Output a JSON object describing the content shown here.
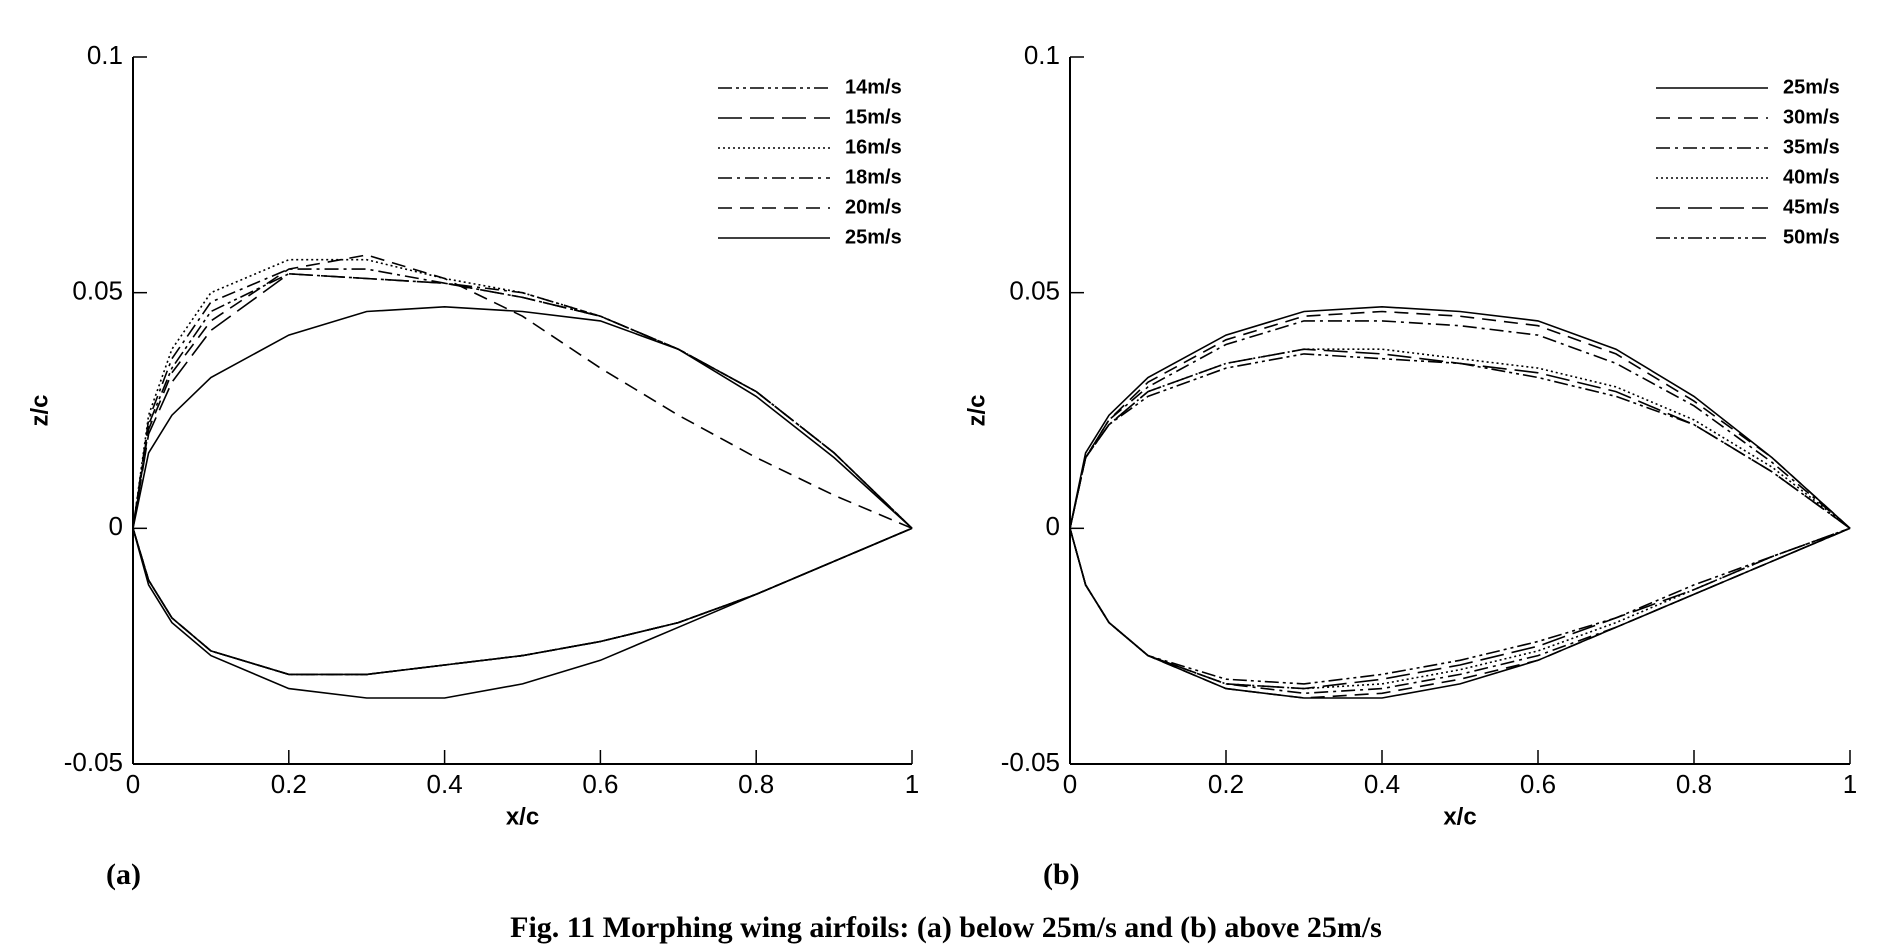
{
  "caption": "Fig. 11    Morphing wing airfoils: (a) below 25m/s and (b) above 25m/s",
  "chart_data": [
    {
      "type": "line",
      "panel_label": "(a)",
      "x_label": "x/c",
      "y_label": "z/c",
      "xlim": [
        0,
        1
      ],
      "xticks": [
        0,
        0.2,
        0.4,
        0.6,
        0.8,
        1
      ],
      "ylim": [
        -0.05,
        0.1
      ],
      "yticks": [
        -0.05,
        0,
        0.05,
        0.1
      ],
      "legend": "upper right",
      "color": "#000000",
      "x": [
        1,
        0.9,
        0.8,
        0.7,
        0.6,
        0.5,
        0.4,
        0.3,
        0.2,
        0.1,
        0.05,
        0.02,
        0,
        0.02,
        0.05,
        0.1,
        0.2,
        0.3,
        0.4,
        0.5,
        0.6,
        0.7,
        0.8,
        0.9,
        1
      ],
      "series": [
        {
          "name": "14m/s",
          "dash": "dashdotdot",
          "values": [
            0,
            0.016,
            0.029,
            0.038,
            0.045,
            0.049,
            0.052,
            0.053,
            0.054,
            0.046,
            0.034,
            0.022,
            0,
            -0.011,
            -0.019,
            -0.026,
            -0.031,
            -0.031,
            -0.029,
            -0.027,
            -0.024,
            -0.02,
            -0.014,
            -0.007,
            0
          ]
        },
        {
          "name": "15m/s",
          "dash": "longdash",
          "values": [
            0,
            0.016,
            0.029,
            0.038,
            0.045,
            0.049,
            0.052,
            0.053,
            0.054,
            0.042,
            0.031,
            0.02,
            0,
            -0.011,
            -0.019,
            -0.026,
            -0.031,
            -0.031,
            -0.029,
            -0.027,
            -0.024,
            -0.02,
            -0.014,
            -0.007,
            0
          ]
        },
        {
          "name": "16m/s",
          "dash": "dot",
          "values": [
            0,
            0.016,
            0.029,
            0.038,
            0.045,
            0.05,
            0.053,
            0.057,
            0.057,
            0.05,
            0.038,
            0.024,
            0,
            -0.011,
            -0.019,
            -0.026,
            -0.031,
            -0.031,
            -0.029,
            -0.027,
            -0.024,
            -0.02,
            -0.014,
            -0.007,
            0
          ]
        },
        {
          "name": "18m/s",
          "dash": "dashdot",
          "values": [
            0,
            0.016,
            0.029,
            0.038,
            0.045,
            0.05,
            0.052,
            0.055,
            0.055,
            0.048,
            0.036,
            0.023,
            0,
            -0.011,
            -0.019,
            -0.026,
            -0.031,
            -0.031,
            -0.029,
            -0.027,
            -0.024,
            -0.02,
            -0.014,
            -0.007,
            0
          ]
        },
        {
          "name": "20m/s",
          "dash": "dash",
          "values": [
            0,
            0.007,
            0.015,
            0.024,
            0.034,
            0.045,
            0.053,
            0.058,
            0.055,
            0.044,
            0.033,
            0.021,
            0,
            -0.011,
            -0.019,
            -0.026,
            -0.031,
            -0.031,
            -0.029,
            -0.027,
            -0.024,
            -0.02,
            -0.014,
            -0.007,
            0
          ]
        },
        {
          "name": "25m/s",
          "dash": "solid",
          "values": [
            0,
            0.015,
            0.028,
            0.038,
            0.044,
            0.046,
            0.047,
            0.046,
            0.041,
            0.032,
            0.024,
            0.016,
            0,
            -0.012,
            -0.02,
            -0.027,
            -0.034,
            -0.036,
            -0.036,
            -0.033,
            -0.028,
            -0.021,
            -0.014,
            -0.007,
            0
          ]
        }
      ]
    },
    {
      "type": "line",
      "panel_label": "(b)",
      "x_label": "x/c",
      "y_label": "z/c",
      "xlim": [
        0,
        1
      ],
      "xticks": [
        0,
        0.2,
        0.4,
        0.6,
        0.8,
        1
      ],
      "ylim": [
        -0.05,
        0.1
      ],
      "yticks": [
        -0.05,
        0,
        0.05,
        0.1
      ],
      "legend": "upper right",
      "color": "#000000",
      "x": [
        1,
        0.9,
        0.8,
        0.7,
        0.6,
        0.5,
        0.4,
        0.3,
        0.2,
        0.1,
        0.05,
        0.02,
        0,
        0.02,
        0.05,
        0.1,
        0.2,
        0.3,
        0.4,
        0.5,
        0.6,
        0.7,
        0.8,
        0.9,
        1
      ],
      "series": [
        {
          "name": "25m/s",
          "dash": "solid",
          "values": [
            0,
            0.015,
            0.028,
            0.038,
            0.044,
            0.046,
            0.047,
            0.046,
            0.041,
            0.032,
            0.024,
            0.016,
            0,
            -0.012,
            -0.02,
            -0.027,
            -0.034,
            -0.036,
            -0.036,
            -0.033,
            -0.028,
            -0.021,
            -0.014,
            -0.007,
            0
          ]
        },
        {
          "name": "30m/s",
          "dash": "dash",
          "values": [
            0,
            0.015,
            0.027,
            0.037,
            0.043,
            0.045,
            0.046,
            0.045,
            0.04,
            0.031,
            0.023,
            0.015,
            0,
            -0.012,
            -0.02,
            -0.027,
            -0.034,
            -0.036,
            -0.035,
            -0.032,
            -0.028,
            -0.021,
            -0.014,
            -0.007,
            0
          ]
        },
        {
          "name": "35m/s",
          "dash": "dashdot",
          "values": [
            0,
            0.014,
            0.026,
            0.035,
            0.041,
            0.043,
            0.044,
            0.044,
            0.039,
            0.03,
            0.023,
            0.015,
            0,
            -0.012,
            -0.02,
            -0.027,
            -0.033,
            -0.035,
            -0.034,
            -0.031,
            -0.027,
            -0.021,
            -0.014,
            -0.007,
            0
          ]
        },
        {
          "name": "40m/s",
          "dash": "dot",
          "values": [
            0,
            0.013,
            0.023,
            0.03,
            0.034,
            0.036,
            0.038,
            0.038,
            0.035,
            0.029,
            0.022,
            0.015,
            0,
            -0.012,
            -0.02,
            -0.027,
            -0.033,
            -0.034,
            -0.033,
            -0.03,
            -0.026,
            -0.02,
            -0.013,
            -0.006,
            0
          ]
        },
        {
          "name": "45m/s",
          "dash": "longdash",
          "values": [
            0,
            0.012,
            0.022,
            0.029,
            0.033,
            0.035,
            0.037,
            0.038,
            0.035,
            0.029,
            0.022,
            0.015,
            0,
            -0.012,
            -0.02,
            -0.027,
            -0.033,
            -0.034,
            -0.032,
            -0.029,
            -0.025,
            -0.019,
            -0.013,
            -0.006,
            0
          ]
        },
        {
          "name": "50m/s",
          "dash": "dashdotdot",
          "values": [
            0,
            0.012,
            0.022,
            0.028,
            0.032,
            0.035,
            0.036,
            0.037,
            0.034,
            0.028,
            0.022,
            0.015,
            0,
            -0.012,
            -0.02,
            -0.027,
            -0.032,
            -0.033,
            -0.031,
            -0.028,
            -0.024,
            -0.019,
            -0.012,
            -0.006,
            0
          ]
        }
      ]
    }
  ]
}
